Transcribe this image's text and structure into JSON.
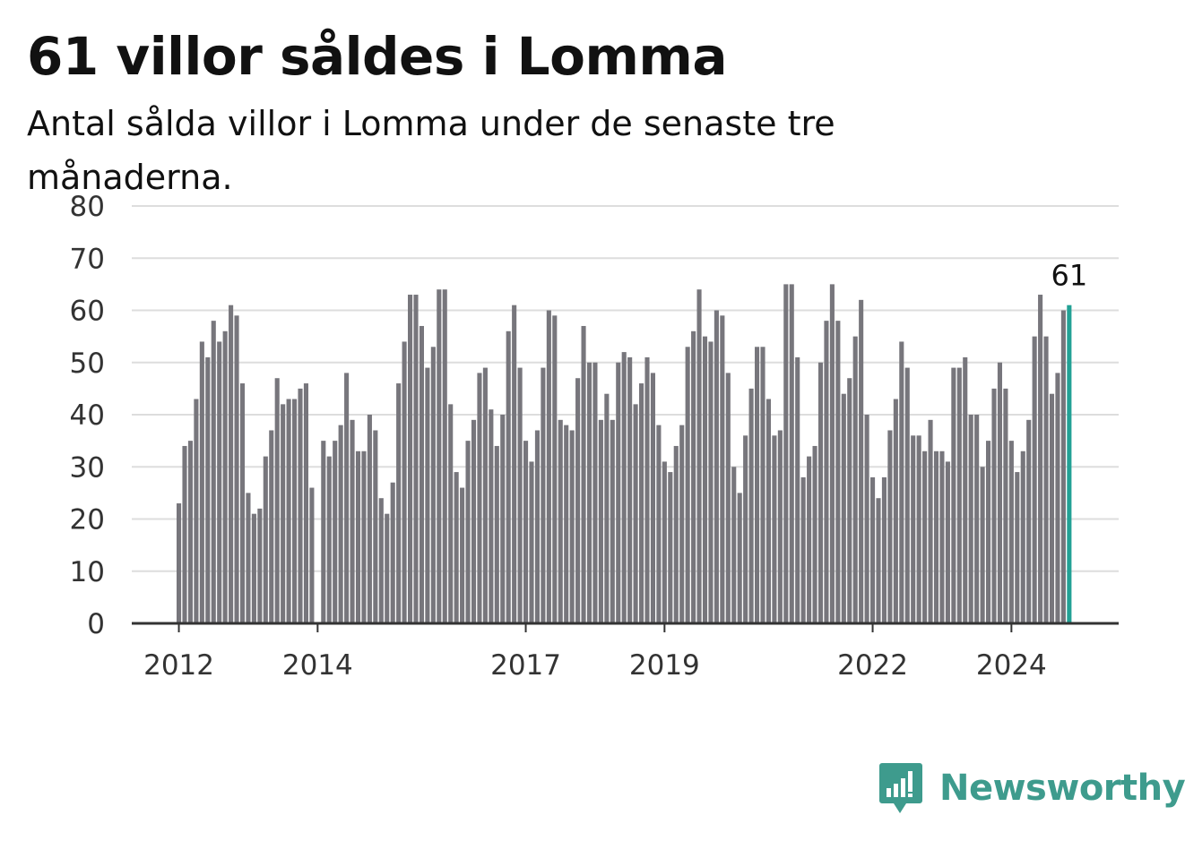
{
  "title": "61 villor såldes i Lomma",
  "subtitle": "Antal sålda villor i Lomma under de senaste tre månaderna.",
  "brand": {
    "name": "Newsworthy",
    "icon": "newsworthy-logo-icon",
    "color": "#3e9b8d"
  },
  "chart_data": {
    "type": "bar",
    "x_start": "2012-01",
    "frequency": "monthly",
    "values": [
      23,
      34,
      35,
      43,
      54,
      51,
      58,
      54,
      56,
      61,
      59,
      46,
      25,
      21,
      22,
      32,
      37,
      47,
      42,
      43,
      43,
      45,
      46,
      26,
      0,
      35,
      32,
      35,
      38,
      48,
      39,
      33,
      33,
      40,
      37,
      24,
      21,
      27,
      46,
      54,
      63,
      63,
      57,
      49,
      53,
      64,
      64,
      42,
      29,
      26,
      35,
      39,
      48,
      49,
      41,
      34,
      40,
      56,
      61,
      49,
      35,
      31,
      37,
      49,
      60,
      59,
      39,
      38,
      37,
      47,
      57,
      50,
      50,
      39,
      44,
      39,
      50,
      52,
      51,
      42,
      46,
      51,
      48,
      38,
      31,
      29,
      34,
      38,
      53,
      56,
      64,
      55,
      54,
      60,
      59,
      48,
      30,
      25,
      36,
      45,
      53,
      53,
      43,
      36,
      37,
      65,
      65,
      51,
      28,
      32,
      34,
      50,
      58,
      65,
      58,
      44,
      47,
      55,
      62,
      40,
      28,
      24,
      28,
      37,
      43,
      54,
      49,
      36,
      36,
      33,
      39,
      33,
      33,
      31,
      49,
      49,
      51,
      40,
      40,
      30,
      35,
      45,
      50,
      45,
      35,
      29,
      33,
      39,
      55,
      63,
      55,
      44,
      48,
      60,
      61
    ],
    "highlight_label": "61",
    "x_ticks": [
      "2012",
      "2014",
      "2017",
      "2019",
      "2022",
      "2024"
    ],
    "y_ticks": [
      "0",
      "10",
      "20",
      "30",
      "40",
      "50",
      "60",
      "70",
      "80"
    ],
    "ylim": [
      0,
      80
    ],
    "grid": true,
    "colors": {
      "bar": "#77767c",
      "highlight": "#22a195",
      "grid": "#dddddd",
      "axis": "#333333"
    }
  }
}
